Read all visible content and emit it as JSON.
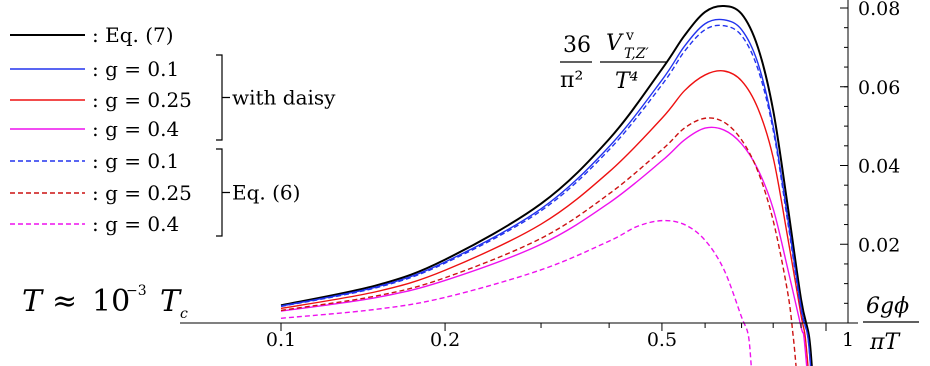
{
  "chart_data": {
    "type": "line",
    "x_scale": "log",
    "xlim": [
      0.1,
      1.05
    ],
    "ylim": [
      0,
      0.08
    ],
    "xlabel": {
      "numerator": "6gϕ",
      "denominator": "πT"
    },
    "ylabel": {
      "coef_num": "36",
      "coef_den": "π²",
      "V": "V",
      "sup": "v",
      "sub": "T,Z′",
      "den": "T⁴"
    },
    "x_ticks": [
      {
        "value": 0.1,
        "label": "0.1"
      },
      {
        "value": 0.2,
        "label": "0.2"
      },
      {
        "value": 0.5,
        "label": "0.5"
      },
      {
        "value": 1.0,
        "label": "1"
      }
    ],
    "y_ticks": [
      {
        "value": 0.02,
        "label": "0.02"
      },
      {
        "value": 0.04,
        "label": "0.04"
      },
      {
        "value": 0.06,
        "label": "0.06"
      },
      {
        "value": 0.08,
        "label": "0.08"
      }
    ],
    "annotation": {
      "lhs": "T",
      "approx": "≈",
      "mant": "10",
      "exp": "−3",
      "rhs": "T",
      "rhs_sub": "c"
    },
    "groups": [
      {
        "label": "with daisy",
        "series_index": [
          1,
          2,
          3
        ]
      },
      {
        "label": "Eq. (6)",
        "series_index": [
          4,
          5,
          6
        ]
      }
    ],
    "series": [
      {
        "name": "Eq. (7)",
        "legend": ": Eq. (7)",
        "color": "#000000",
        "dash": "solid",
        "x": [
          0.1,
          0.15,
          0.2,
          0.3,
          0.4,
          0.5,
          0.55,
          0.6,
          0.65,
          0.7,
          0.75,
          0.8,
          0.85,
          0.9,
          0.93
        ],
        "y": [
          0.0045,
          0.0096,
          0.0161,
          0.0303,
          0.0467,
          0.0645,
          0.073,
          0.079,
          0.0805,
          0.0785,
          0.07,
          0.054,
          0.03,
          0.006,
          -0.003
        ]
      },
      {
        "name": "g = 0.1",
        "legend": ": g = 0.1",
        "color": "#2233ee",
        "dash": "solid",
        "x": [
          0.1,
          0.15,
          0.2,
          0.3,
          0.4,
          0.5,
          0.55,
          0.6,
          0.65,
          0.7,
          0.75,
          0.8,
          0.85,
          0.9,
          0.925
        ],
        "y": [
          0.0043,
          0.0092,
          0.0155,
          0.029,
          0.0448,
          0.0617,
          0.0703,
          0.076,
          0.077,
          0.0745,
          0.066,
          0.05,
          0.027,
          0.004,
          -0.003
        ]
      },
      {
        "name": "g = 0.25",
        "legend": ": g = 0.25",
        "color": "#ee1111",
        "dash": "solid",
        "x": [
          0.1,
          0.15,
          0.2,
          0.3,
          0.4,
          0.5,
          0.55,
          0.6,
          0.65,
          0.7,
          0.75,
          0.8,
          0.85,
          0.9,
          0.915
        ],
        "y": [
          0.0037,
          0.008,
          0.0134,
          0.0251,
          0.0384,
          0.052,
          0.059,
          0.063,
          0.064,
          0.0615,
          0.0545,
          0.042,
          0.022,
          0.002,
          -0.003
        ]
      },
      {
        "name": "g = 0.4",
        "legend": ": g = 0.4",
        "color": "#ee11ee",
        "dash": "solid",
        "x": [
          0.1,
          0.15,
          0.2,
          0.3,
          0.4,
          0.5,
          0.55,
          0.6,
          0.65,
          0.7,
          0.75,
          0.8,
          0.85,
          0.9,
          0.91
        ],
        "y": [
          0.003,
          0.0065,
          0.0108,
          0.02,
          0.0305,
          0.0412,
          0.0465,
          0.0495,
          0.049,
          0.0455,
          0.039,
          0.029,
          0.014,
          -0.001,
          -0.003
        ]
      },
      {
        "name": "g = 0.1",
        "legend": ": g = 0.1",
        "color": "#2233ee",
        "dash": "dashed",
        "x": [
          0.1,
          0.15,
          0.2,
          0.3,
          0.4,
          0.5,
          0.55,
          0.6,
          0.65,
          0.7,
          0.75,
          0.8,
          0.85,
          0.9,
          0.925
        ],
        "y": [
          0.0042,
          0.009,
          0.0152,
          0.0285,
          0.044,
          0.0605,
          0.069,
          0.0745,
          0.0755,
          0.073,
          0.0645,
          0.049,
          0.026,
          0.0035,
          -0.003
        ]
      },
      {
        "name": "g = 0.25",
        "legend": ": g = 0.25",
        "color": "#cc1111",
        "dash": "dashed",
        "x": [
          0.1,
          0.15,
          0.2,
          0.3,
          0.4,
          0.5,
          0.55,
          0.6,
          0.65,
          0.7,
          0.75,
          0.8,
          0.85,
          0.87
        ],
        "y": [
          0.0032,
          0.0069,
          0.0115,
          0.0215,
          0.0328,
          0.044,
          0.0495,
          0.052,
          0.051,
          0.0465,
          0.0385,
          0.026,
          0.008,
          -0.003
        ]
      },
      {
        "name": "g = 0.4",
        "legend": ": g = 0.4",
        "color": "#ee11ee",
        "dash": "dashed",
        "x": [
          0.1,
          0.15,
          0.2,
          0.3,
          0.4,
          0.45,
          0.5,
          0.55,
          0.6,
          0.65,
          0.7,
          0.72
        ],
        "y": [
          0.0012,
          0.0035,
          0.0065,
          0.0135,
          0.0208,
          0.0245,
          0.026,
          0.025,
          0.021,
          0.0135,
          0.0015,
          -0.003
        ]
      }
    ]
  }
}
